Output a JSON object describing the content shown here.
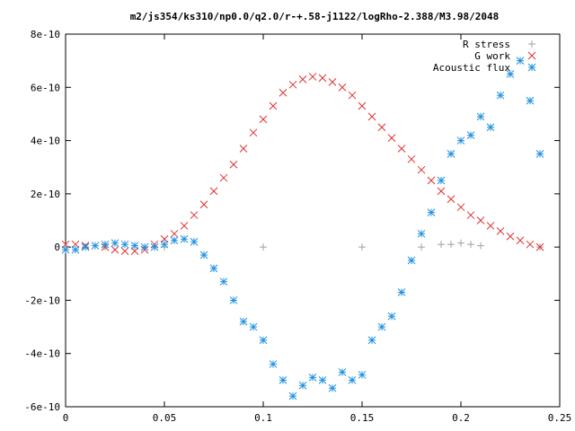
{
  "chart_data": {
    "type": "scatter",
    "title": "m2/js354/ks310/np0.0/q2.0/r-+.58-j1122/logRho-2.388/M3.98/2048",
    "xlabel": "",
    "ylabel": "",
    "xlim": [
      0,
      0.25
    ],
    "ylim": [
      -6e-10,
      8e-10
    ],
    "x_ticks": [
      0,
      0.05,
      0.1,
      0.15,
      0.2,
      0.25
    ],
    "x_tick_labels": [
      "0",
      "0.05",
      "0.1",
      "0.15",
      "0.2",
      "0.25"
    ],
    "y_ticks": [
      -6e-10,
      -4e-10,
      -2e-10,
      0,
      2e-10,
      4e-10,
      6e-10,
      8e-10
    ],
    "y_tick_labels": [
      "-6e-10",
      "-4e-10",
      "-2e-10",
      "0",
      "2e-10",
      "4e-10",
      "6e-10",
      "8e-10"
    ],
    "grid": false,
    "legend_position": "top-right",
    "series": [
      {
        "name": "R stress",
        "marker": "plus",
        "color": "#a0a0a0",
        "points": [
          [
            0.0,
            0
          ],
          [
            0.02,
            0
          ],
          [
            0.05,
            0
          ],
          [
            0.1,
            0
          ],
          [
            0.15,
            0
          ],
          [
            0.18,
            0
          ],
          [
            0.19,
            1e-11
          ],
          [
            0.195,
            1e-11
          ],
          [
            0.2,
            1.5e-11
          ],
          [
            0.205,
            1e-11
          ],
          [
            0.21,
            5e-12
          ],
          [
            0.24,
            0
          ]
        ]
      },
      {
        "name": "G work",
        "marker": "cross",
        "color": "#e03030",
        "points": [
          [
            0.0,
            1e-11
          ],
          [
            0.005,
            1e-11
          ],
          [
            0.01,
            5e-12
          ],
          [
            0.02,
            0.0
          ],
          [
            0.025,
            -1e-11
          ],
          [
            0.03,
            -1.5e-11
          ],
          [
            0.035,
            -1.5e-11
          ],
          [
            0.04,
            -1e-11
          ],
          [
            0.045,
            1e-11
          ],
          [
            0.05,
            3e-11
          ],
          [
            0.055,
            5e-11
          ],
          [
            0.06,
            8e-11
          ],
          [
            0.065,
            1.2e-10
          ],
          [
            0.07,
            1.6e-10
          ],
          [
            0.075,
            2.1e-10
          ],
          [
            0.08,
            2.6e-10
          ],
          [
            0.085,
            3.1e-10
          ],
          [
            0.09,
            3.7e-10
          ],
          [
            0.095,
            4.3e-10
          ],
          [
            0.1,
            4.8e-10
          ],
          [
            0.105,
            5.3e-10
          ],
          [
            0.11,
            5.8e-10
          ],
          [
            0.115,
            6.1e-10
          ],
          [
            0.12,
            6.3e-10
          ],
          [
            0.125,
            6.4e-10
          ],
          [
            0.13,
            6.35e-10
          ],
          [
            0.135,
            6.2e-10
          ],
          [
            0.14,
            6e-10
          ],
          [
            0.145,
            5.7e-10
          ],
          [
            0.15,
            5.3e-10
          ],
          [
            0.155,
            4.9e-10
          ],
          [
            0.16,
            4.5e-10
          ],
          [
            0.165,
            4.1e-10
          ],
          [
            0.17,
            3.7e-10
          ],
          [
            0.175,
            3.3e-10
          ],
          [
            0.18,
            2.9e-10
          ],
          [
            0.185,
            2.5e-10
          ],
          [
            0.19,
            2.1e-10
          ],
          [
            0.195,
            1.8e-10
          ],
          [
            0.2,
            1.5e-10
          ],
          [
            0.205,
            1.2e-10
          ],
          [
            0.21,
            1e-10
          ],
          [
            0.215,
            8e-11
          ],
          [
            0.22,
            6e-11
          ],
          [
            0.225,
            4e-11
          ],
          [
            0.23,
            2.5e-11
          ],
          [
            0.235,
            1e-11
          ],
          [
            0.24,
            0.0
          ]
        ]
      },
      {
        "name": "Acoustic flux",
        "marker": "star",
        "color": "#1e90e0",
        "points": [
          [
            0.0,
            -1e-11
          ],
          [
            0.005,
            -1e-11
          ],
          [
            0.01,
            0.0
          ],
          [
            0.015,
            5e-12
          ],
          [
            0.02,
            1e-11
          ],
          [
            0.025,
            1.5e-11
          ],
          [
            0.03,
            1e-11
          ],
          [
            0.035,
            5e-12
          ],
          [
            0.04,
            0.0
          ],
          [
            0.045,
            0.0
          ],
          [
            0.05,
            1e-11
          ],
          [
            0.055,
            2.5e-11
          ],
          [
            0.06,
            3e-11
          ],
          [
            0.065,
            2e-11
          ],
          [
            0.07,
            -3e-11
          ],
          [
            0.075,
            -8e-11
          ],
          [
            0.08,
            -1.3e-10
          ],
          [
            0.085,
            -2e-10
          ],
          [
            0.09,
            -2.8e-10
          ],
          [
            0.095,
            -3e-10
          ],
          [
            0.1,
            -3.5e-10
          ],
          [
            0.105,
            -4.4e-10
          ],
          [
            0.11,
            -5e-10
          ],
          [
            0.115,
            -5.6e-10
          ],
          [
            0.12,
            -5.2e-10
          ],
          [
            0.125,
            -4.9e-10
          ],
          [
            0.13,
            -5e-10
          ],
          [
            0.135,
            -5.3e-10
          ],
          [
            0.14,
            -4.7e-10
          ],
          [
            0.145,
            -5e-10
          ],
          [
            0.15,
            -4.8e-10
          ],
          [
            0.155,
            -3.5e-10
          ],
          [
            0.16,
            -3e-10
          ],
          [
            0.165,
            -2.6e-10
          ],
          [
            0.17,
            -1.7e-10
          ],
          [
            0.175,
            -5e-11
          ],
          [
            0.18,
            5e-11
          ],
          [
            0.185,
            1.3e-10
          ],
          [
            0.19,
            2.5e-10
          ],
          [
            0.195,
            3.5e-10
          ],
          [
            0.2,
            4e-10
          ],
          [
            0.205,
            4.2e-10
          ],
          [
            0.21,
            4.9e-10
          ],
          [
            0.215,
            4.5e-10
          ],
          [
            0.22,
            5.7e-10
          ],
          [
            0.225,
            6.5e-10
          ],
          [
            0.23,
            7e-10
          ],
          [
            0.235,
            5.5e-10
          ],
          [
            0.24,
            3.5e-10
          ]
        ]
      }
    ]
  }
}
